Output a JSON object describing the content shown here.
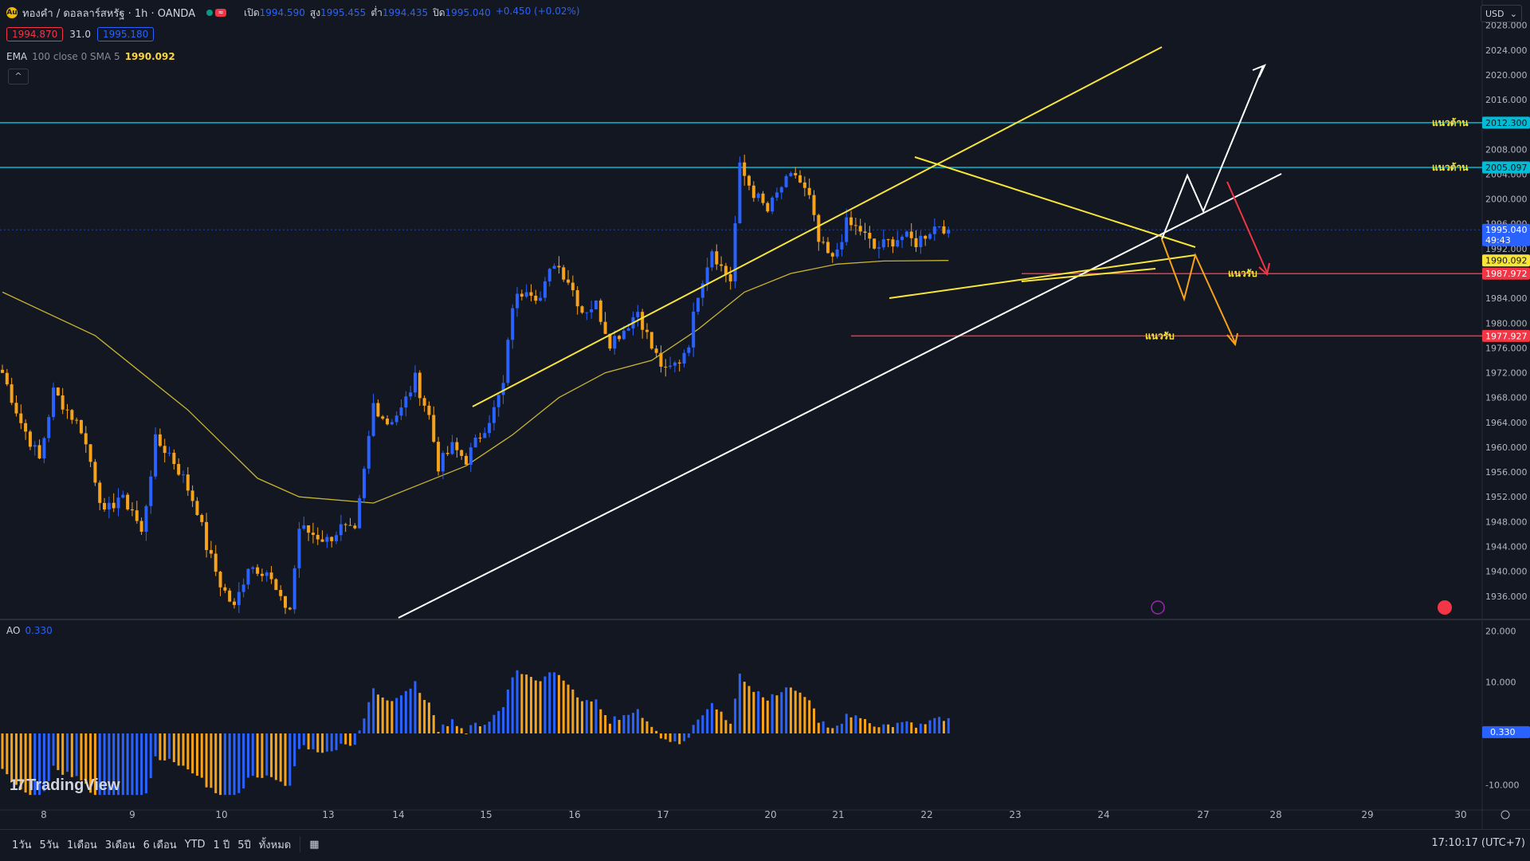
{
  "header": {
    "symbol": "ทองคำ / ดอลลาร์สหรัฐ · 1h · OANDA",
    "open_label": "เปิด",
    "open": "1994.590",
    "high_label": "สูง",
    "high": "1995.455",
    "low_label": "ต่ำ",
    "low": "1994.435",
    "close_label": "ปิด",
    "close": "1995.040",
    "change": "+0.450 (+0.02%)",
    "bid": "1994.870",
    "spread": "31.0",
    "ask": "1995.180"
  },
  "indicators": {
    "ema_name": "EMA",
    "ema_params": "100 close 0 SMA 5",
    "ema_value": "1990.092",
    "ao_name": "AO",
    "ao_value": "0.330"
  },
  "currency": "USD",
  "collapse_icon": "chevron-up-icon",
  "colors": {
    "background": "#131722",
    "bull": "#2962ff",
    "bear": "#f7a21b",
    "ema": "#c8b432",
    "trendline_yellow": "#f7e53b",
    "trendline_white": "#ffffff",
    "resistance": "#00bcd4",
    "support": "#f23645"
  },
  "annotations": {
    "resistance_label": "แนวต้าน",
    "support_label": "แนวรับ"
  },
  "price_labels": {
    "current": "1995.040",
    "countdown": "49:43",
    "ema": "1990.092",
    "r1": "2012.300",
    "r2": "2005.097",
    "s1": "1987.972",
    "s2": "1977.927",
    "ao": "0.330"
  },
  "timeframes": [
    "1วัน",
    "5วัน",
    "1เดือน",
    "3เดือน",
    "6 เดือน",
    "YTD",
    "1 ปี",
    "5ปี",
    "ทั้งหมด"
  ],
  "clock": "17:10:17 (UTC+7)",
  "branding": "TradingView",
  "chart_data": {
    "type": "candlestick",
    "symbol": "XAUUSD",
    "timeframe": "1h",
    "x_ticks": [
      "8",
      "9",
      "10",
      "13",
      "14",
      "15",
      "16",
      "17",
      "20",
      "21",
      "22",
      "23",
      "24",
      "27",
      "28",
      "29",
      "30"
    ],
    "y_ticks": [
      "2028.000",
      "2024.000",
      "2020.000",
      "2016.000",
      "2012.000",
      "2008.000",
      "2004.000",
      "2000.000",
      "1996.000",
      "1992.000",
      "1988.000",
      "1984.000",
      "1980.000",
      "1976.000",
      "1972.000",
      "1968.000",
      "1964.000",
      "1960.000",
      "1956.000",
      "1952.000",
      "1948.000",
      "1944.000",
      "1940.000",
      "1936.000"
    ],
    "ylim": [
      1932.5,
      2029.5
    ],
    "close_path": [
      [
        0,
        1972
      ],
      [
        4,
        1964
      ],
      [
        8,
        1958
      ],
      [
        11,
        1969
      ],
      [
        14,
        1966
      ],
      [
        17,
        1963
      ],
      [
        20,
        1955
      ],
      [
        22,
        1949
      ],
      [
        25,
        1952
      ],
      [
        28,
        1950
      ],
      [
        30,
        1946
      ],
      [
        33,
        1961
      ],
      [
        36,
        1959
      ],
      [
        39,
        1955
      ],
      [
        42,
        1950
      ],
      [
        44,
        1944
      ],
      [
        47,
        1938
      ],
      [
        50,
        1934
      ],
      [
        53,
        1941
      ],
      [
        57,
        1940
      ],
      [
        60,
        1935
      ],
      [
        62,
        1934
      ],
      [
        64,
        1947
      ],
      [
        67,
        1946
      ],
      [
        70,
        1945
      ],
      [
        73,
        1947
      ],
      [
        76,
        1946
      ],
      [
        78,
        1956
      ],
      [
        80,
        1967
      ],
      [
        83,
        1964
      ],
      [
        86,
        1966
      ],
      [
        89,
        1971
      ],
      [
        92,
        1965
      ],
      [
        94,
        1957
      ],
      [
        97,
        1960
      ],
      [
        100,
        1958
      ],
      [
        103,
        1962
      ],
      [
        106,
        1966
      ],
      [
        108,
        1970
      ],
      [
        110,
        1983
      ],
      [
        113,
        1986
      ],
      [
        116,
        1984
      ],
      [
        119,
        1990
      ],
      [
        122,
        1987
      ],
      [
        125,
        1982
      ],
      [
        128,
        1983
      ],
      [
        131,
        1977
      ],
      [
        134,
        1979
      ],
      [
        137,
        1982
      ],
      [
        140,
        1976
      ],
      [
        143,
        1972
      ],
      [
        146,
        1974
      ],
      [
        148,
        1977
      ],
      [
        150,
        1985
      ],
      [
        153,
        1992
      ],
      [
        155,
        1989
      ],
      [
        157,
        1987
      ],
      [
        159,
        2005
      ],
      [
        162,
        2001
      ],
      [
        165,
        1998
      ],
      [
        168,
        2002
      ],
      [
        171,
        2004
      ],
      [
        174,
        2000
      ],
      [
        176,
        1993
      ],
      [
        179,
        1990
      ],
      [
        182,
        1996
      ],
      [
        185,
        1995
      ],
      [
        188,
        1992
      ],
      [
        191,
        1993
      ],
      [
        194,
        1994
      ],
      [
        197,
        1993
      ],
      [
        200,
        1995
      ],
      [
        202,
        1996
      ],
      [
        204,
        1995
      ]
    ],
    "ema_path": [
      [
        0,
        1985
      ],
      [
        20,
        1978
      ],
      [
        40,
        1966
      ],
      [
        55,
        1955
      ],
      [
        64,
        1952
      ],
      [
        80,
        1951
      ],
      [
        90,
        1954
      ],
      [
        100,
        1957
      ],
      [
        110,
        1962
      ],
      [
        120,
        1968
      ],
      [
        130,
        1972
      ],
      [
        140,
        1974
      ],
      [
        150,
        1979
      ],
      [
        160,
        1985
      ],
      [
        170,
        1988
      ],
      [
        180,
        1989.5
      ],
      [
        190,
        1990
      ],
      [
        204,
        1990.1
      ]
    ],
    "ao_histogram_range": [
      -12,
      16
    ],
    "ao_ticks": [
      "20.000",
      "10.000",
      "-10.000"
    ],
    "horizontal_levels": [
      {
        "price": 2012.3,
        "kind": "resistance"
      },
      {
        "price": 2005.097,
        "kind": "resistance"
      },
      {
        "price": 1987.972,
        "kind": "support"
      },
      {
        "price": 1977.927,
        "kind": "support"
      }
    ]
  }
}
